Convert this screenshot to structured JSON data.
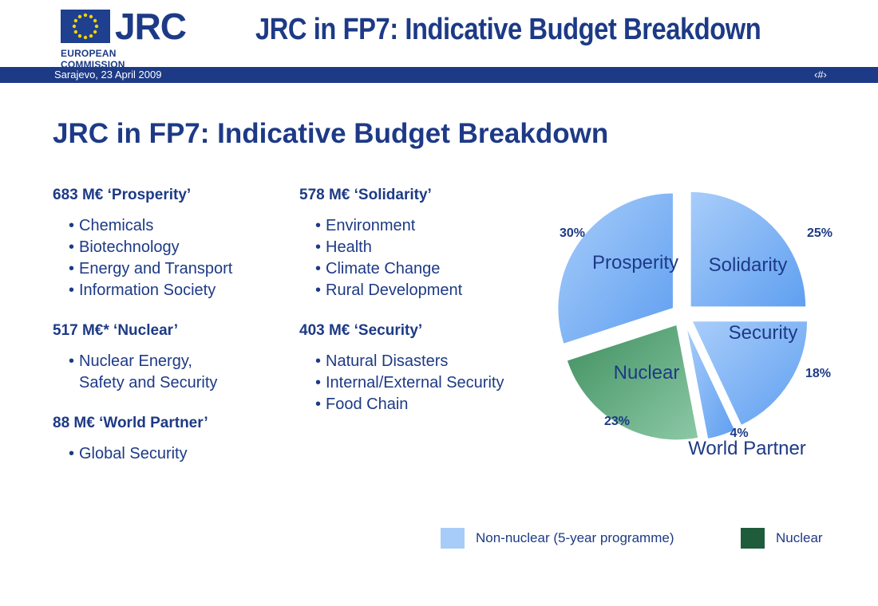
{
  "header": {
    "logo_text": "JRC",
    "logo_subtext": "EUROPEAN COMMISSION",
    "title": "JRC in FP7: Indicative Budget Breakdown"
  },
  "band": {
    "date": "Sarajevo, 23 April 2009",
    "page": "‹#›"
  },
  "page_title": "JRC in FP7: Indicative Budget Breakdown",
  "groups": {
    "prosperity": {
      "head": "683 M€ ‘Prosperity’",
      "items": [
        "Chemicals",
        "Biotechnology",
        "Energy and Transport",
        "Information Society"
      ]
    },
    "nuclear": {
      "head": "517 M€* ‘Nuclear’",
      "items": [
        "Nuclear Energy,"
      ],
      "continuation": "Safety and Security"
    },
    "world_partner": {
      "head": "88 M€ ‘World Partner’",
      "items": [
        "Global Security"
      ]
    },
    "solidarity": {
      "head": "578 M€ ‘Solidarity’",
      "items": [
        "Environment",
        "Health",
        "Climate Change",
        "Rural Development"
      ]
    },
    "security": {
      "head": "403 M€ ‘Security’",
      "items": [
        "Natural Disasters",
        "Internal/External Security",
        "Food Chain"
      ]
    }
  },
  "chart_data": {
    "type": "pie",
    "slices": [
      {
        "label": "Solidarity",
        "percent_label": "25%",
        "value": 25,
        "color": "#7fb0f0",
        "group": "non-nuclear"
      },
      {
        "label": "Security",
        "percent_label": "18%",
        "value": 18,
        "color": "#7fb0f0",
        "group": "non-nuclear"
      },
      {
        "label": "World Partner",
        "percent_label": "4%",
        "value": 4,
        "color": "#7fb0f0",
        "group": "non-nuclear"
      },
      {
        "label": "Nuclear",
        "percent_label": "23%",
        "value": 23,
        "color": "#5aa67c",
        "group": "nuclear"
      },
      {
        "label": "Prosperity",
        "percent_label": "30%",
        "value": 30,
        "color": "#7fb0f0",
        "group": "non-nuclear"
      }
    ],
    "legend": [
      {
        "label": "Non-nuclear (5-year programme)",
        "color": "#a8ccf8"
      },
      {
        "label": "Nuclear",
        "color": "#1e5c3c"
      }
    ]
  }
}
